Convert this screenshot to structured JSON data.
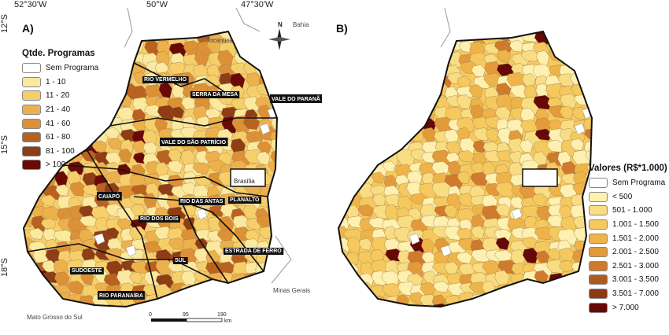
{
  "coordinates": {
    "top": [
      "52°30'W",
      "50°W",
      "47°30'W"
    ],
    "left": [
      "12°S",
      "15°S",
      "18°S"
    ]
  },
  "panels": [
    {
      "letter": "A)",
      "legend_title": "Qtde. Programas",
      "legend": [
        {
          "label": "Sem Programa",
          "color": "#ffffff"
        },
        {
          "label": "1 - 10",
          "color": "#fbe9a0"
        },
        {
          "label": "11 - 20",
          "color": "#f6cf6a"
        },
        {
          "label": "21 - 40",
          "color": "#edb14c"
        },
        {
          "label": "41 - 60",
          "color": "#dc9136"
        },
        {
          "label": "61 - 80",
          "color": "#b9621f"
        },
        {
          "label": "81 - 100",
          "color": "#8e3d14"
        },
        {
          "label": "> 100",
          "color": "#6a0a07"
        }
      ],
      "regions": [
        "RIO VERMELHO",
        "SERRA DA MESA",
        "VALE DO PARANÃ",
        "VALE DO SÃO PATRÍCIO",
        "CAIAPÓ",
        "RIO DOS BOIS",
        "RIO DAS ANTAS",
        "PLANALTO",
        "SUL",
        "ESTRADA DE FERRO",
        "SUDOESTE",
        "RIO PARANAÍBA"
      ],
      "neighbors": [
        "Tocantins",
        "Bahia",
        "Brasília",
        "Minas Gerais",
        "Mato Grosso do Sul"
      ],
      "compass": "N",
      "scale": {
        "ticks": [
          "0",
          "95",
          "190"
        ],
        "unit": "km"
      }
    },
    {
      "letter": "B)",
      "legend_title": "Valores (R$*1.000)",
      "legend": [
        {
          "label": "Sem Programa",
          "color": "#ffffff"
        },
        {
          "label": "< 500",
          "color": "#fdf0b0"
        },
        {
          "label": "501 - 1.000",
          "color": "#f9dd82"
        },
        {
          "label": "1.001 - 1.500",
          "color": "#f5c95e"
        },
        {
          "label": "1.501 - 2.000",
          "color": "#efb449"
        },
        {
          "label": "2.001 - 2.500",
          "color": "#e39a3b"
        },
        {
          "label": "2.501 - 3.000",
          "color": "#cf7a2c"
        },
        {
          "label": "3.001 - 3.500",
          "color": "#b15a1f"
        },
        {
          "label": "3.501 - 7.000",
          "color": "#8e3914"
        },
        {
          "label": "> 7.000",
          "color": "#660806"
        }
      ]
    }
  ]
}
